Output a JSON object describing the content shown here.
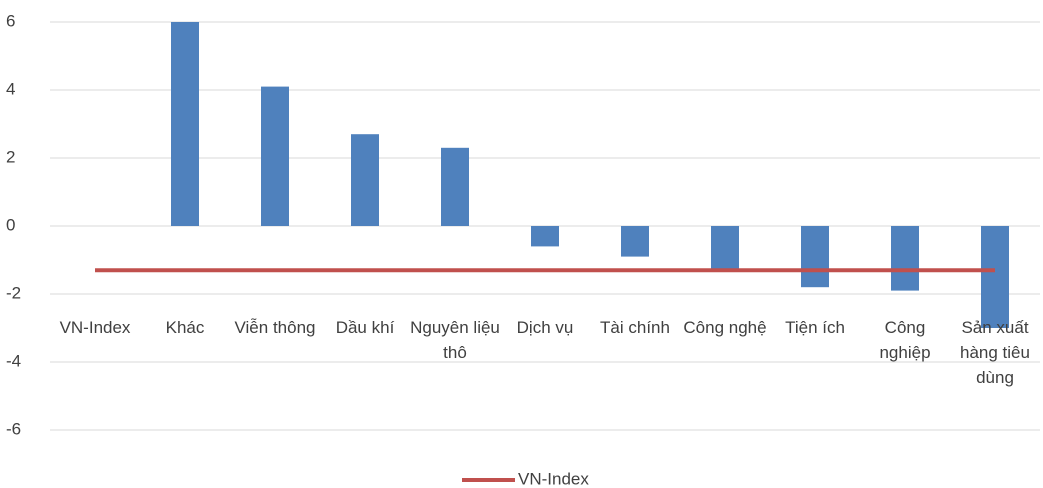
{
  "chart_data": {
    "type": "bar",
    "categories": [
      "VN-Index",
      "Khác",
      "Viễn thông",
      "Dầu khí",
      "Nguyên liệu thô",
      "Dịch vụ",
      "Tài chính",
      "Công nghệ",
      "Tiện ích",
      "Công nghiệp",
      "Sản xuất hàng tiêu dùng"
    ],
    "series": [
      {
        "type": "bar",
        "color": "#4f81bd",
        "values": [
          null,
          6.0,
          4.1,
          2.7,
          2.3,
          -0.6,
          -0.9,
          -1.3,
          -1.8,
          -1.9,
          -3.0
        ]
      },
      {
        "type": "line",
        "name": "VN-Index",
        "color": "#c0504d",
        "values": [
          -1.3,
          -1.3,
          -1.3,
          -1.3,
          -1.3,
          -1.3,
          -1.3,
          -1.3,
          -1.3,
          -1.3,
          -1.3
        ]
      }
    ],
    "ylim": [
      -6,
      6
    ],
    "yticks": [
      -6,
      -4,
      -2,
      0,
      2,
      4,
      6
    ],
    "grid": true,
    "legend": "bottom"
  }
}
